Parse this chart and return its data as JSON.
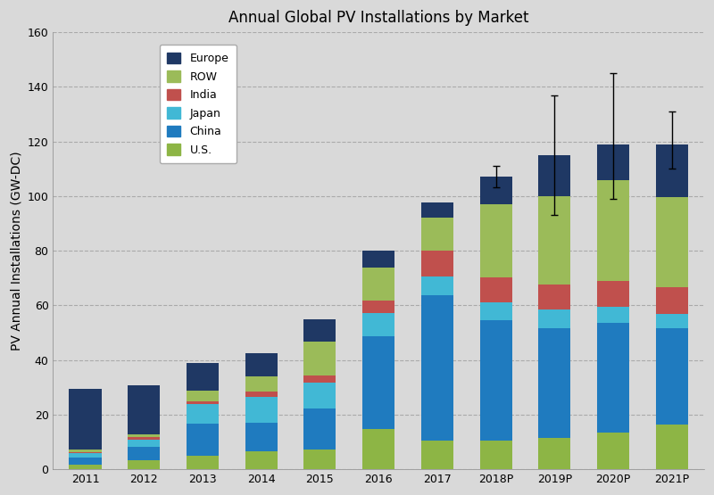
{
  "title": "Annual Global PV Installations by Market",
  "ylabel": "PV Annual Installations (GW-DC)",
  "years": [
    "2011",
    "2012",
    "2013",
    "2014",
    "2015",
    "2016",
    "2017",
    "2018P",
    "2019P",
    "2020P",
    "2021P"
  ],
  "segments": {
    "U.S.": [
      1.8,
      3.3,
      4.8,
      6.5,
      7.3,
      14.7,
      10.6,
      10.6,
      11.5,
      13.5,
      16.5
    ],
    "China": [
      2.5,
      5.0,
      12.0,
      10.5,
      15.0,
      34.0,
      53.0,
      44.0,
      40.0,
      40.0,
      35.0
    ],
    "Japan": [
      1.5,
      2.5,
      7.0,
      9.5,
      9.5,
      8.5,
      7.0,
      6.5,
      7.0,
      6.0,
      5.5
    ],
    "India": [
      0.5,
      1.0,
      1.0,
      2.0,
      2.5,
      4.5,
      9.5,
      9.0,
      9.0,
      9.5,
      9.5
    ],
    "ROW": [
      1.0,
      1.0,
      4.0,
      5.5,
      12.5,
      12.0,
      12.0,
      27.0,
      32.5,
      37.0,
      33.0
    ],
    "Europe": [
      22.0,
      18.0,
      10.0,
      8.5,
      8.0,
      6.5,
      5.5,
      10.0,
      15.0,
      13.0,
      19.5
    ]
  },
  "colors": {
    "U.S.": "#8db545",
    "China": "#1f7bbf",
    "Japan": "#41b8d5",
    "India": "#c0504d",
    "ROW": "#9bbb59",
    "Europe": "#1f3864"
  },
  "error_bars": {
    "years_idx": [
      7,
      8,
      9,
      10
    ],
    "totals": [
      107.1,
      115.0,
      119.0,
      119.0
    ],
    "upper": [
      4.0,
      22.0,
      26.0,
      12.0
    ],
    "lower": [
      4.0,
      22.0,
      20.0,
      9.0
    ]
  },
  "ylim": [
    0,
    160
  ],
  "yticks": [
    0,
    20,
    40,
    60,
    80,
    100,
    120,
    140,
    160
  ],
  "background_color": "#d9d9d9",
  "bar_width": 0.55,
  "title_fontsize": 12,
  "axis_fontsize": 10,
  "tick_fontsize": 9,
  "legend_fontsize": 9
}
